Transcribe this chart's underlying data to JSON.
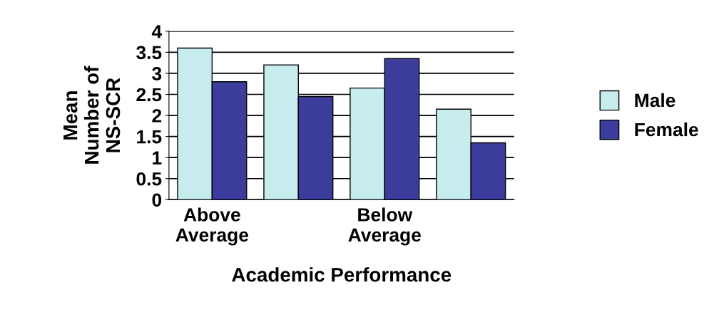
{
  "chart_data": {
    "type": "bar",
    "xlabel": "Academic Performance",
    "ylabel": "Mean\nNumber of\nNS-SCR",
    "categories": [
      "Above\nAverage",
      null,
      "Below\nAverage",
      null
    ],
    "series": [
      {
        "name": "Male",
        "color": "#c6ecee",
        "values": [
          3.6,
          3.2,
          2.65,
          2.15
        ]
      },
      {
        "name": "Female",
        "color": "#3c3c9c",
        "values": [
          2.8,
          2.45,
          3.35,
          1.35
        ]
      }
    ],
    "ylim": [
      0,
      4
    ],
    "yticks": [
      0,
      0.5,
      1,
      1.5,
      2,
      2.5,
      3,
      3.5,
      4
    ],
    "grid": "y",
    "legend": "right"
  }
}
